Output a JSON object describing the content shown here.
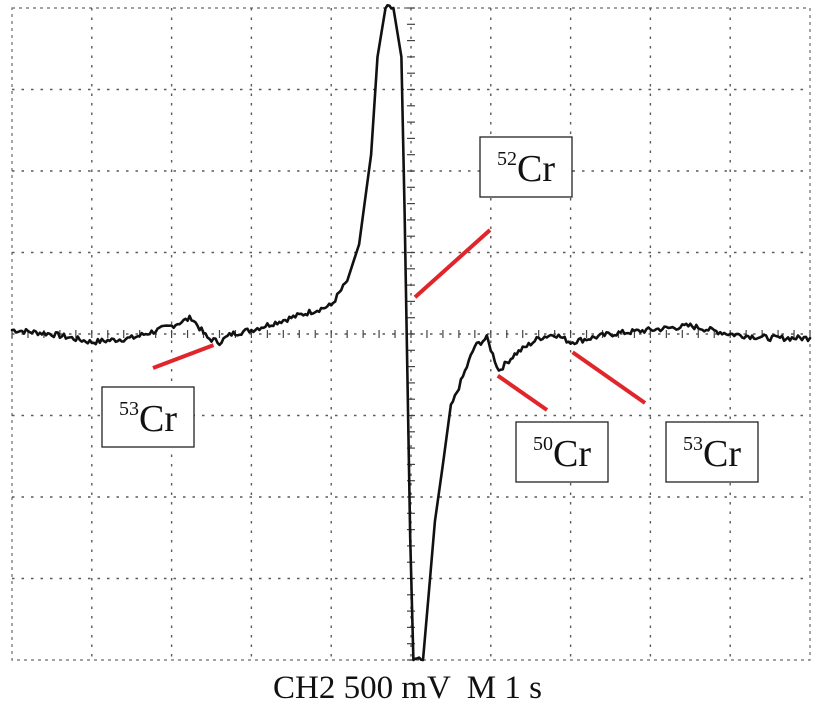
{
  "chart_data": {
    "type": "line",
    "title": "",
    "xlabel": "",
    "ylabel": "",
    "grid": true,
    "x_divisions": 10,
    "y_divisions": 8,
    "xlim": [
      0,
      10
    ],
    "ylim": [
      -4,
      4
    ],
    "series": [
      {
        "name": "",
        "x": [
          0,
          0.5,
          1.0,
          1.5,
          2.0,
          2.25,
          2.45,
          2.6,
          2.75,
          3.0,
          3.5,
          4.0,
          4.2,
          4.35,
          4.5,
          4.58,
          4.68,
          4.78,
          4.88,
          4.92,
          4.99,
          5.03,
          5.15,
          5.3,
          5.5,
          5.8,
          5.95,
          6.1,
          6.3,
          6.6,
          6.8,
          7.0,
          7.5,
          8.0,
          8.5,
          9.0,
          9.5,
          10.0
        ],
        "y": [
          0.05,
          0.0,
          -0.1,
          -0.05,
          0.1,
          0.2,
          -0.05,
          -0.1,
          0.0,
          0.05,
          0.2,
          0.35,
          0.65,
          1.1,
          2.2,
          3.4,
          4.0,
          4.0,
          3.4,
          1.5,
          -2.5,
          -4.0,
          -4.0,
          -2.3,
          -0.9,
          -0.15,
          -0.05,
          -0.45,
          -0.25,
          -0.05,
          0.0,
          -0.1,
          0.0,
          0.05,
          0.1,
          0.0,
          -0.05,
          -0.05
        ]
      }
    ],
    "annotations": [
      {
        "mass": "53",
        "element": "Cr",
        "x": 2.55,
        "y": -0.1
      },
      {
        "mass": "52",
        "element": "Cr",
        "x": 5.15,
        "y": 0.5
      },
      {
        "mass": "50",
        "element": "Cr",
        "x": 6.05,
        "y": -0.45
      },
      {
        "mass": "53",
        "element": "Cr",
        "x": 7.0,
        "y": -0.15
      }
    ]
  },
  "caption": {
    "channel": "CH2",
    "scale": "500 mV",
    "timebase": "M 1 s"
  }
}
